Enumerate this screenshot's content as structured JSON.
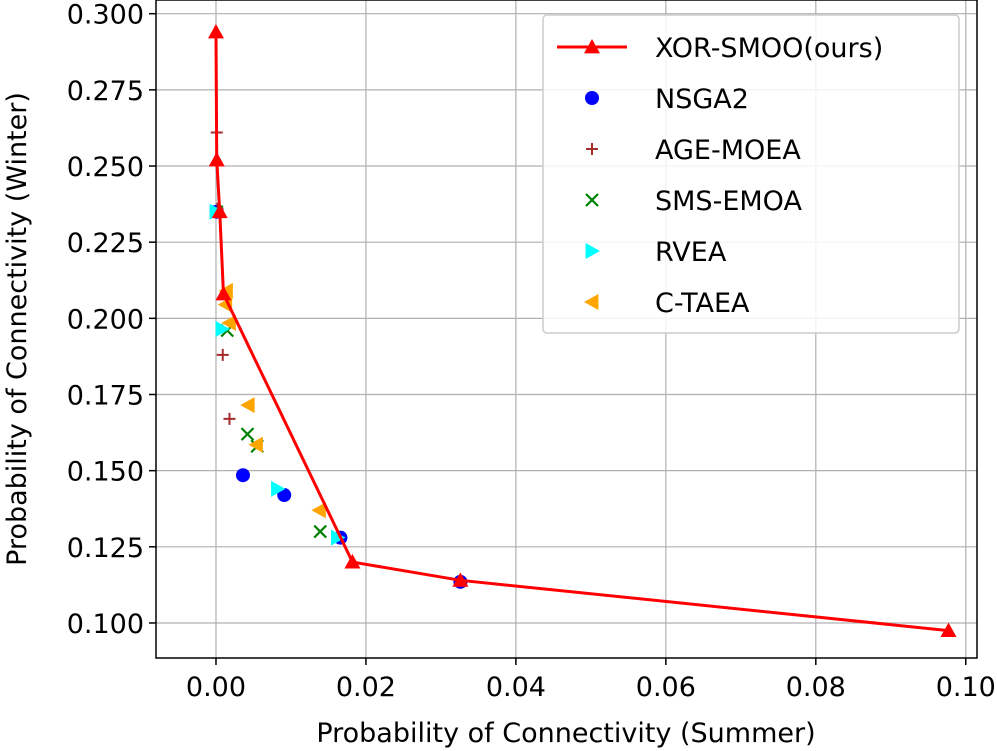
{
  "chart_data": {
    "type": "scatter",
    "xlabel": "Probability of Connectivity (Summer)",
    "ylabel": "Probability of Connectivity (Winter)",
    "xlim": [
      -0.008,
      0.1015
    ],
    "ylim": [
      0.0885,
      0.3045
    ],
    "xticks": [
      0.0,
      0.02,
      0.04,
      0.06,
      0.08,
      0.1
    ],
    "xtick_labels": [
      "0.00",
      "0.02",
      "0.04",
      "0.06",
      "0.08",
      "0.10"
    ],
    "yticks": [
      0.1,
      0.125,
      0.15,
      0.175,
      0.2,
      0.225,
      0.25,
      0.275,
      0.3
    ],
    "ytick_labels": [
      "0.100",
      "0.125",
      "0.150",
      "0.175",
      "0.200",
      "0.225",
      "0.250",
      "0.275",
      "0.300"
    ],
    "grid": true,
    "legend_position": "top-right",
    "series": [
      {
        "name": "XOR-SMOO(ours)",
        "marker": "triangle-up",
        "line": true,
        "color": "#ff0000",
        "points": [
          [
            0.0,
            0.294
          ],
          [
            0.0001,
            0.252
          ],
          [
            0.0005,
            0.235
          ],
          [
            0.001,
            0.208
          ],
          [
            0.0182,
            0.12
          ],
          [
            0.0326,
            0.114
          ],
          [
            0.0977,
            0.0975
          ]
        ]
      },
      {
        "name": "NSGA2",
        "marker": "circle",
        "line": false,
        "color": "#0000ff",
        "points": [
          [
            0.0001,
            0.235
          ],
          [
            0.0036,
            0.1485
          ],
          [
            0.0091,
            0.142
          ],
          [
            0.0166,
            0.128
          ],
          [
            0.0326,
            0.1135
          ]
        ]
      },
      {
        "name": "AGE-MOEA",
        "marker": "plus",
        "line": false,
        "color": "#a52a2a",
        "points": [
          [
            0.0001,
            0.261
          ],
          [
            0.0002,
            0.236
          ],
          [
            0.0009,
            0.188
          ],
          [
            0.0018,
            0.167
          ]
        ]
      },
      {
        "name": "SMS-EMOA",
        "marker": "x",
        "line": false,
        "color": "#008000",
        "points": [
          [
            0.0001,
            0.235
          ],
          [
            0.0015,
            0.196
          ],
          [
            0.0042,
            0.162
          ],
          [
            0.0055,
            0.158
          ],
          [
            0.0139,
            0.13
          ]
        ]
      },
      {
        "name": "RVEA",
        "marker": "triangle-right",
        "line": false,
        "color": "#00ffff",
        "points": [
          [
            0.0,
            0.235
          ],
          [
            0.0008,
            0.1965
          ],
          [
            0.0082,
            0.144
          ],
          [
            0.0162,
            0.128
          ]
        ]
      },
      {
        "name": "C-TAEA",
        "marker": "triangle-left",
        "line": false,
        "color": "#ffa500",
        "points": [
          [
            0.0014,
            0.209
          ],
          [
            0.0013,
            0.2045
          ],
          [
            0.0018,
            0.1985
          ],
          [
            0.0043,
            0.1715
          ],
          [
            0.0054,
            0.1585
          ],
          [
            0.0138,
            0.137
          ]
        ]
      }
    ]
  }
}
